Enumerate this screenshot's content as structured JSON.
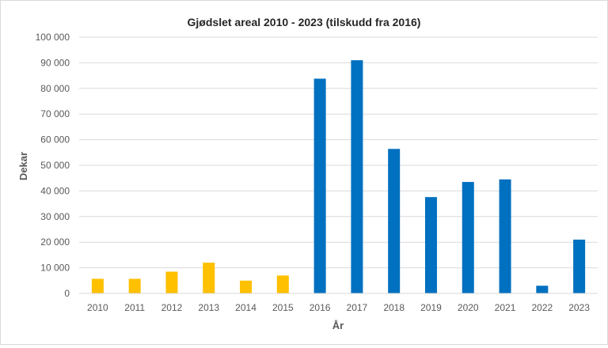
{
  "chart_data": {
    "type": "bar",
    "title": "Gjødslet areal 2010 - 2023 (tilskudd fra 2016)",
    "xlabel": "År",
    "ylabel": "Dekar",
    "ylim": [
      0,
      100000
    ],
    "y_ticks": [
      0,
      10000,
      20000,
      30000,
      40000,
      50000,
      60000,
      70000,
      80000,
      90000,
      100000
    ],
    "y_tick_labels": [
      "0",
      "10 000",
      "20 000",
      "30 000",
      "40 000",
      "50 000",
      "60 000",
      "70 000",
      "80 000",
      "90 000",
      "100 000"
    ],
    "categories": [
      "2010",
      "2011",
      "2012",
      "2013",
      "2014",
      "2015",
      "2016",
      "2017",
      "2018",
      "2019",
      "2020",
      "2021",
      "2022",
      "2023"
    ],
    "values": [
      5700,
      5700,
      8500,
      12000,
      5000,
      7000,
      83800,
      91000,
      56400,
      37600,
      43500,
      44500,
      3000,
      21000
    ],
    "bar_colors": [
      "#FFC000",
      "#FFC000",
      "#FFC000",
      "#FFC000",
      "#FFC000",
      "#FFC000",
      "#0070C0",
      "#0070C0",
      "#0070C0",
      "#0070C0",
      "#0070C0",
      "#0070C0",
      "#0070C0",
      "#0070C0"
    ],
    "grid": true,
    "legend": "none"
  }
}
